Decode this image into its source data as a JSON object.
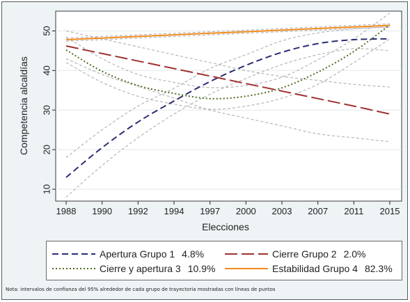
{
  "chart_data": {
    "type": "line",
    "title": "",
    "xlabel": "Elecciones",
    "ylabel": "Competencia alcaldías",
    "categories": [
      "1988",
      "1990",
      "1992",
      "1994",
      "1997",
      "2000",
      "2003",
      "2007",
      "2011",
      "2015"
    ],
    "y_ticks": [
      10,
      20,
      30,
      40,
      50
    ],
    "ylim": [
      7,
      55
    ],
    "grid": true,
    "legend_position": "bottom",
    "series": [
      {
        "name": "Apertura Grupo 1",
        "pct": "4.8%",
        "style": "dash",
        "color": "#2b2b74",
        "values": [
          13,
          20.5,
          27,
          32.3,
          37.2,
          41.3,
          44.6,
          46.8,
          47.8,
          48.0
        ],
        "ci_low": [
          8,
          16,
          23,
          29,
          34,
          38,
          41.5,
          44,
          45.5,
          45
        ],
        "ci_high": [
          18,
          25,
          31,
          35.5,
          40.5,
          44,
          47.5,
          49.5,
          50.5,
          51
        ]
      },
      {
        "name": "Cierre Grupo 2",
        "pct": "2.0%",
        "style": "longdash",
        "color": "#a03030",
        "values": [
          46.2,
          44.3,
          42.4,
          40.5,
          38.6,
          36.7,
          34.8,
          32.9,
          31.0,
          29.0
        ],
        "ci_low": [
          43,
          39,
          36,
          33,
          30,
          28,
          26,
          24,
          23,
          22
        ],
        "ci_high": [
          50,
          48,
          46,
          44,
          42,
          40,
          38.5,
          37.5,
          36.5,
          35.8
        ]
      },
      {
        "name": "Cierre y apertura 3",
        "pct": "10.9%",
        "style": "dot",
        "color": "#4e6b24",
        "values": [
          45.2,
          39.8,
          36.2,
          34.2,
          32.9,
          33.5,
          35.6,
          39.6,
          44.8,
          51.5
        ],
        "ci_low": [
          42,
          37,
          33.5,
          31.5,
          30.2,
          31,
          33,
          36.5,
          42,
          48
        ],
        "ci_high": [
          48.5,
          43,
          39,
          37,
          35.7,
          36.2,
          38.3,
          42.7,
          48,
          54.5
        ]
      },
      {
        "name": "Estabilidad Grupo 4",
        "pct": "82.3%",
        "style": "solid",
        "color": "#f08a1c",
        "values": [
          47.8,
          48.2,
          48.6,
          49.0,
          49.4,
          49.8,
          50.2,
          50.6,
          51.0,
          51.4
        ],
        "ci_low": [
          47.4,
          47.8,
          48.2,
          48.6,
          49.0,
          49.4,
          49.8,
          50.2,
          50.6,
          51.0
        ],
        "ci_high": [
          48.2,
          48.6,
          49.0,
          49.4,
          49.8,
          50.2,
          50.6,
          51.0,
          51.4,
          51.8
        ]
      }
    ],
    "note": "Nota: intervalos de confianza del 95% alrededor de cada grupo de trayectoria mostradas con líneas de puntos"
  }
}
